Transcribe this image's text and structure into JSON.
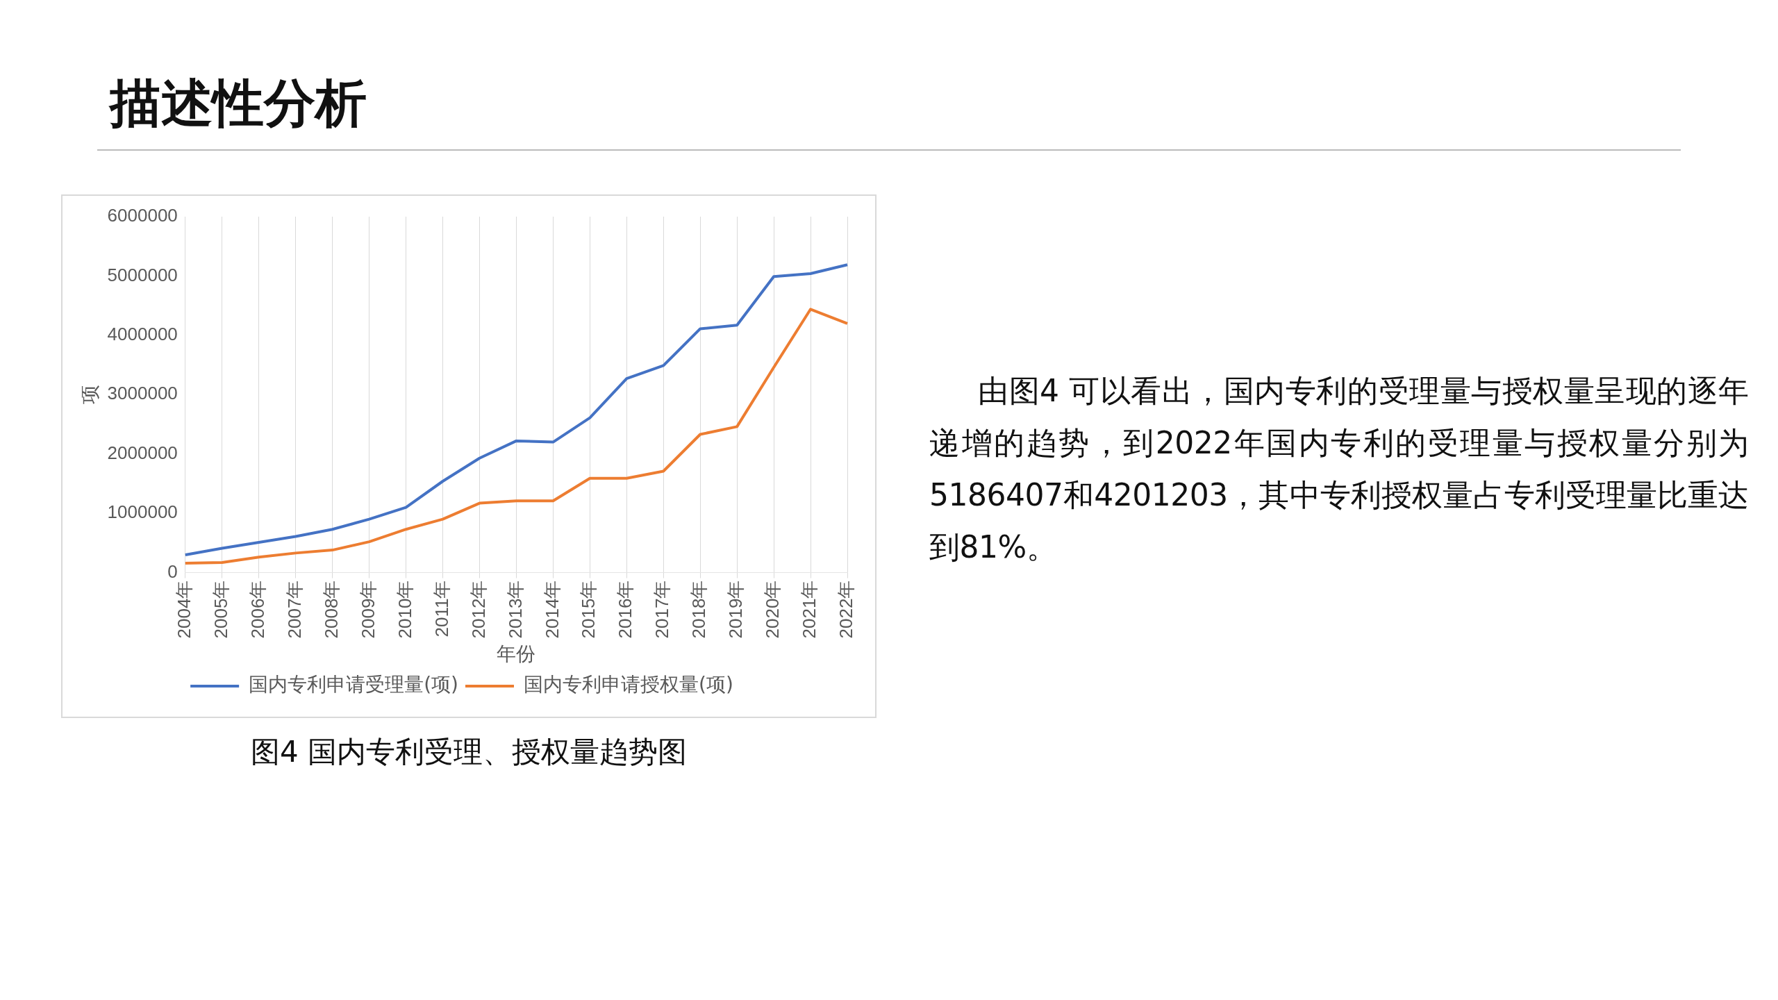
{
  "chart_data": {
    "type": "line",
    "title": "描述性分析",
    "subtitle": "图4 国内专利受理、授权量趋势图",
    "xlabel": "年份",
    "ylabel": "项",
    "categories": [
      "2004年",
      "2005年",
      "2006年",
      "2007年",
      "2008年",
      "2009年",
      "2010年",
      "2011年",
      "2012年",
      "2013年",
      "2014年",
      "2015年",
      "2016年",
      "2017年",
      "2018年",
      "2019年",
      "2020年",
      "2021年",
      "2022年"
    ],
    "series": [
      {
        "name": "国内专利申请受理量(项)",
        "color": "#4472c4",
        "values": [
          300000,
          410000,
          510000,
          610000,
          730000,
          900000,
          1100000,
          1540000,
          1930000,
          2220000,
          2200000,
          2610000,
          3270000,
          3490000,
          4110000,
          4170000,
          4990000,
          5040000,
          5190000
        ]
      },
      {
        "name": "国内专利申请授权量(项)",
        "color": "#ed7d31",
        "values": [
          160000,
          170000,
          260000,
          330000,
          380000,
          520000,
          730000,
          900000,
          1170000,
          1210000,
          1210000,
          1590000,
          1590000,
          1710000,
          2330000,
          2460000,
          3460000,
          4440000,
          4200000
        ]
      }
    ],
    "ylim": [
      0,
      6000000
    ],
    "yticks": [
      0,
      1000000,
      2000000,
      3000000,
      4000000,
      5000000,
      6000000
    ],
    "grid": "x",
    "legend": "bottom",
    "marker": "none",
    "line_style": "solid",
    "annotations": [
      "由图4 可以看出，国内专利的受理量与授权量呈现的逐年递增的趋势，到2022年国内专利的受理量与授权量分别为5186407和4201203，其中专利授权量占专利受理量比重达到81%。"
    ]
  }
}
